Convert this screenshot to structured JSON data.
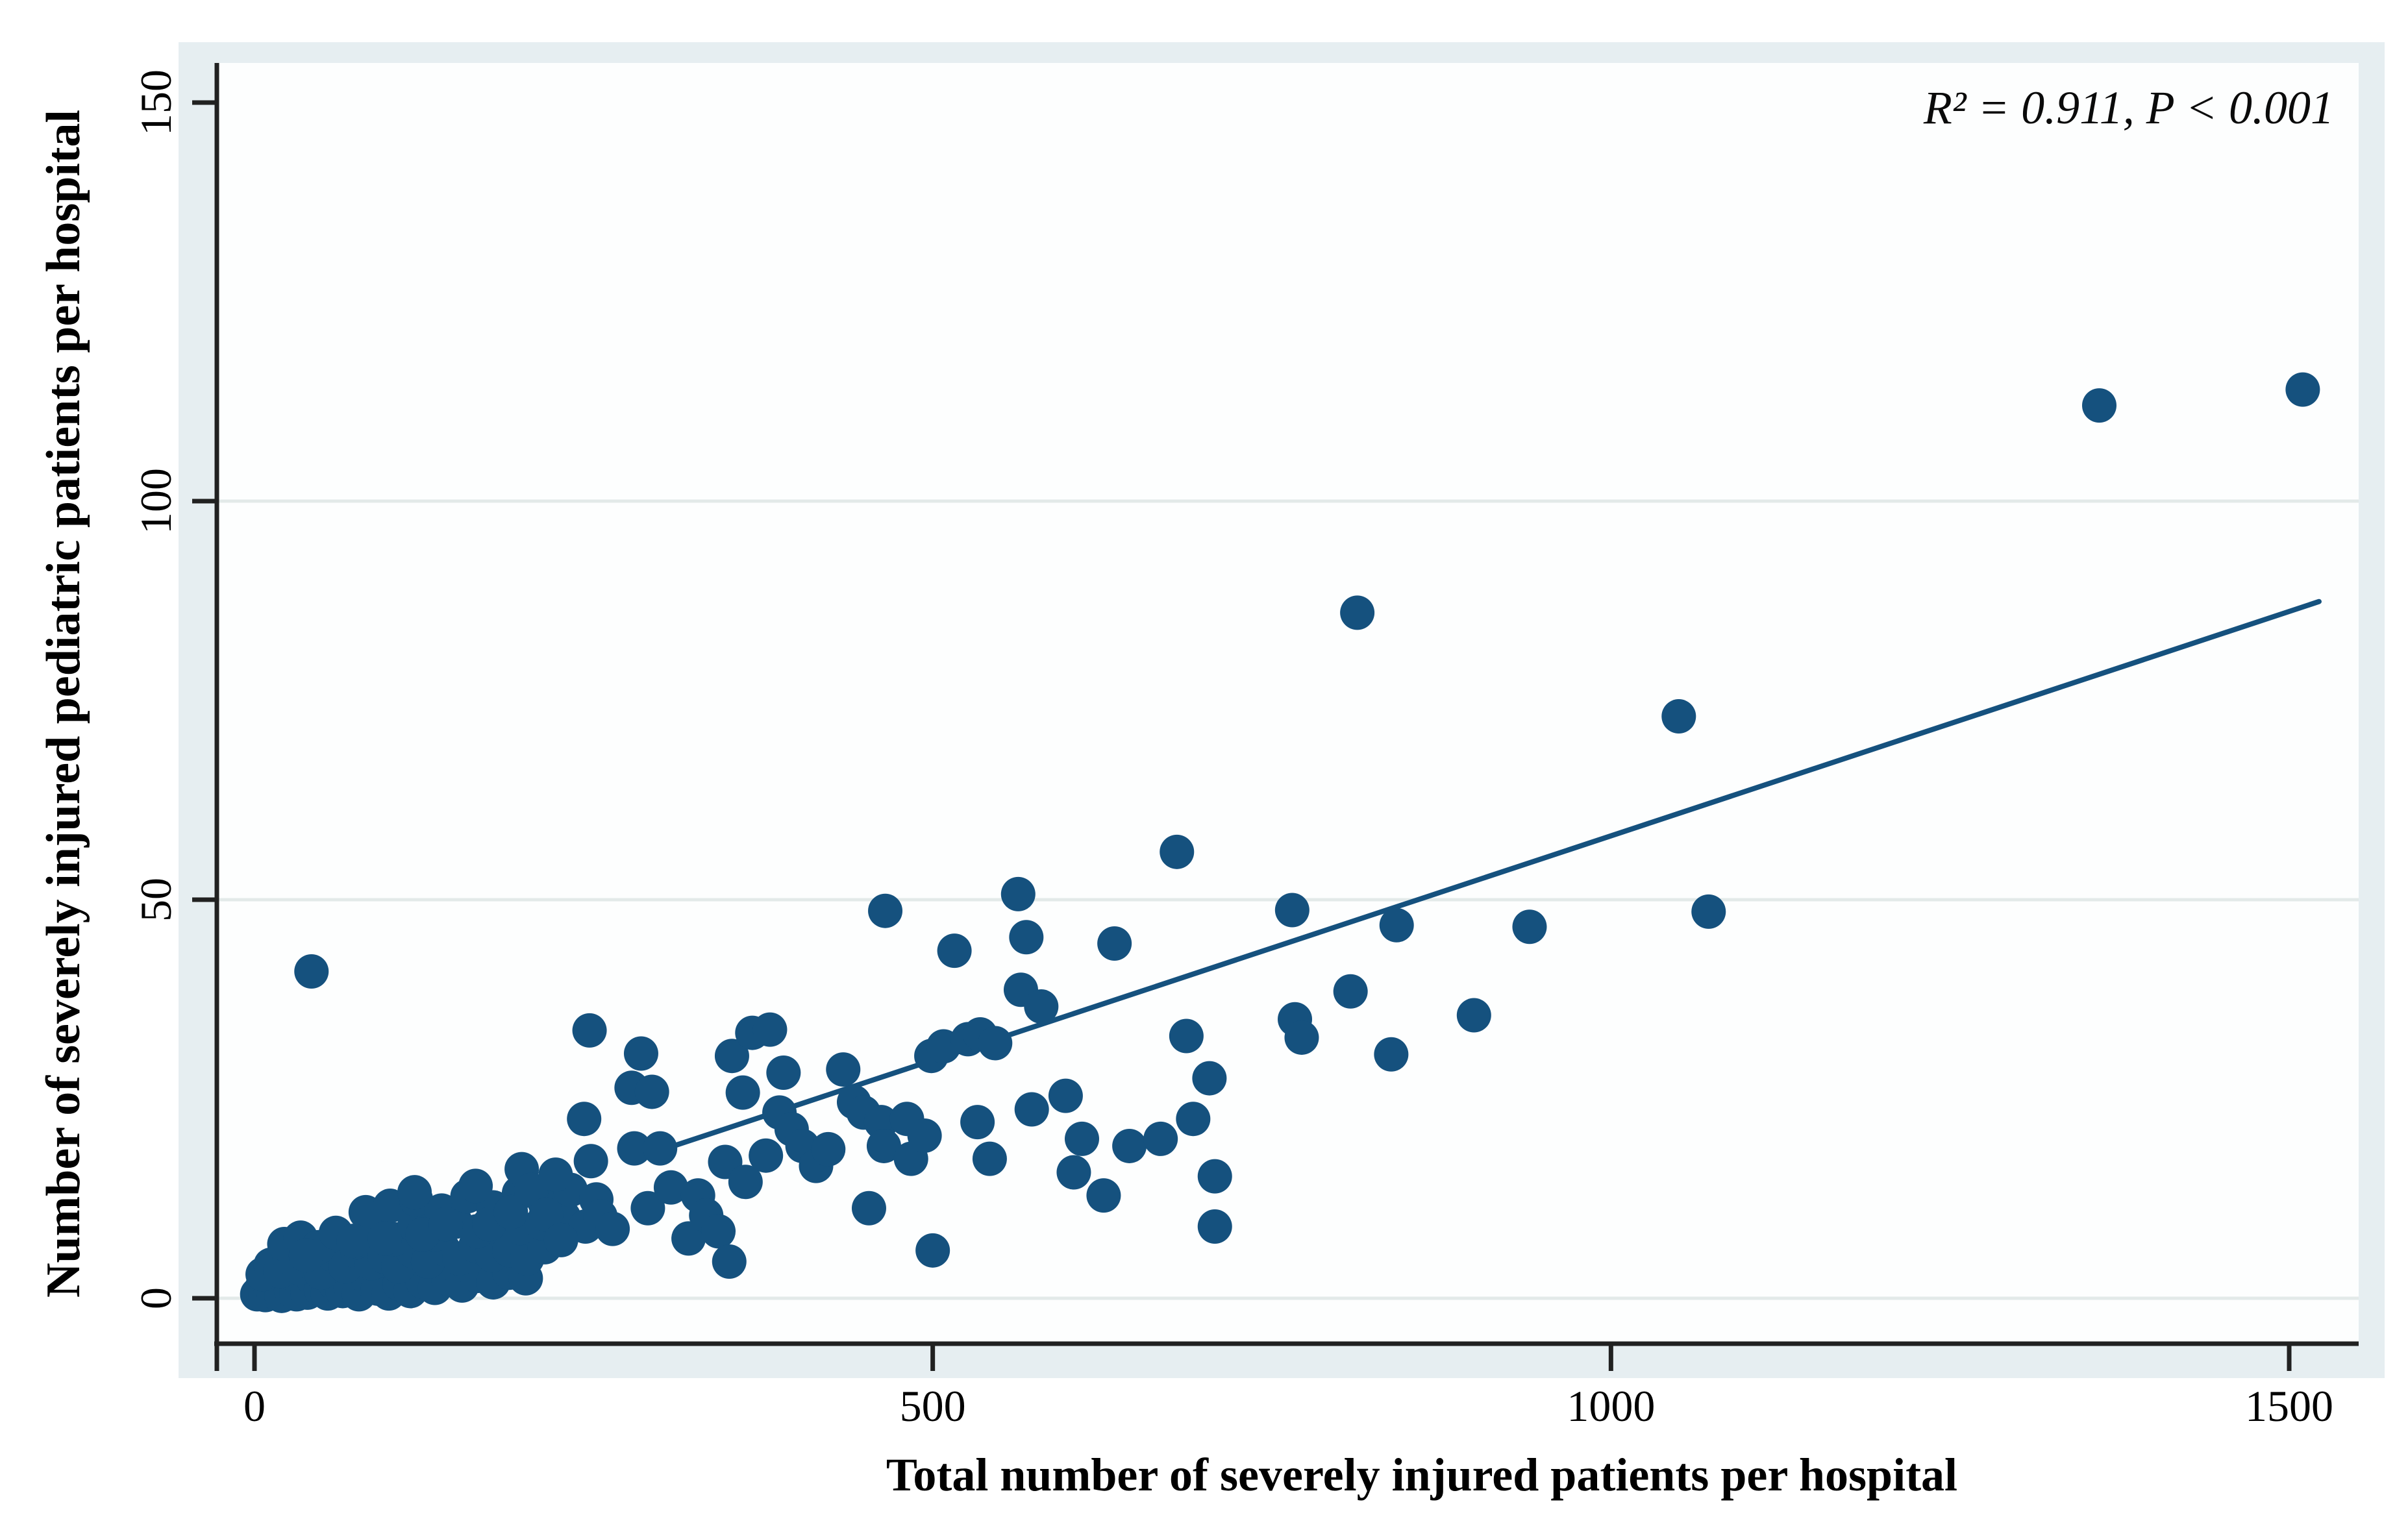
{
  "annotation": {
    "text": "R² = 0.911,  P < 0.001"
  },
  "x_axis": {
    "title": "Total number of severely injured patients per hospital"
  },
  "y_axis": {
    "title": "Number of severely injured pediatric patients per hospital"
  },
  "colors": {
    "navy": "#15517e",
    "band": "#e6eef1",
    "plot_bg": "#fdfefe",
    "grid": "#e3eae9",
    "axis": "#212121",
    "text": "#000000"
  },
  "chart_data": {
    "type": "scatter",
    "title": "",
    "xlabel": "Total number of severely injured patients per hospital",
    "ylabel": "Number of severely injured pediatric patients per hospital",
    "xlim": [
      0,
      1540
    ],
    "ylim": [
      0,
      155
    ],
    "x_ticks": [
      0,
      500,
      1000,
      1500
    ],
    "y_ticks": [
      0,
      50,
      100,
      150
    ],
    "grid_y": [
      0,
      50,
      100
    ],
    "grid_on": true,
    "legend": "none",
    "stats": {
      "r_squared": 0.911,
      "p_value": "< 0.001"
    },
    "fit_line": {
      "x1": 300,
      "y1": 18.6,
      "x2": 1522,
      "y2": 87.4
    },
    "points": [
      [
        2,
        0.5
      ],
      [
        5,
        1.2
      ],
      [
        8,
        0.4
      ],
      [
        11,
        1.8
      ],
      [
        14,
        0.8
      ],
      [
        17,
        1.5
      ],
      [
        20,
        0.3
      ],
      [
        23,
        2
      ],
      [
        27,
        1
      ],
      [
        31,
        0.5
      ],
      [
        35,
        1.6
      ],
      [
        39,
        0.7
      ],
      [
        44,
        2.2
      ],
      [
        49,
        1.1
      ],
      [
        54,
        0.6
      ],
      [
        59,
        1.9
      ],
      [
        65,
        0.9
      ],
      [
        71,
        1.4
      ],
      [
        77,
        0.5
      ],
      [
        84,
        2.3
      ],
      [
        91,
        1.2
      ],
      [
        99,
        0.6
      ],
      [
        107,
        1.8
      ],
      [
        115,
        0.9
      ],
      [
        124,
        2.1
      ],
      [
        133,
        1.3
      ],
      [
        143,
        2.4
      ],
      [
        153,
        1.6
      ],
      [
        164,
        2.8
      ],
      [
        176,
        2
      ],
      [
        188,
        3.2
      ],
      [
        200,
        2.5
      ],
      [
        6,
        3
      ],
      [
        12,
        4.2
      ],
      [
        19,
        3.4
      ],
      [
        26,
        5
      ],
      [
        33,
        3.8
      ],
      [
        41,
        4.6
      ],
      [
        49,
        3.2
      ],
      [
        58,
        5.4
      ],
      [
        67,
        4
      ],
      [
        76,
        5.8
      ],
      [
        86,
        4.4
      ],
      [
        96,
        5.2
      ],
      [
        106,
        4
      ],
      [
        117,
        5.9
      ],
      [
        128,
        4.6
      ],
      [
        139,
        6.2
      ],
      [
        151,
        5
      ],
      [
        163,
        6.6
      ],
      [
        175,
        5.4
      ],
      [
        188,
        6
      ],
      [
        201,
        5
      ],
      [
        214,
        6.4
      ],
      [
        22,
        6.8
      ],
      [
        34,
        7.6
      ],
      [
        47,
        6.4
      ],
      [
        60,
        8.2
      ],
      [
        74,
        7
      ],
      [
        88,
        8.8
      ],
      [
        103,
        7.4
      ],
      [
        118,
        9.2
      ],
      [
        133,
        8
      ],
      [
        148,
        9.6
      ],
      [
        164,
        8.4
      ],
      [
        180,
        10
      ],
      [
        196,
        8.8
      ],
      [
        212,
        9.4
      ],
      [
        228,
        10.2
      ],
      [
        244,
        9
      ],
      [
        82,
        10.8
      ],
      [
        100,
        11.6
      ],
      [
        119,
        12.4
      ],
      [
        138,
        11
      ],
      [
        157,
        12.8
      ],
      [
        176,
        11.4
      ],
      [
        195,
        13.2
      ],
      [
        214,
        12
      ],
      [
        233,
        13.6
      ],
      [
        252,
        12.4
      ],
      [
        38,
        5.4
      ],
      [
        42,
        41
      ],
      [
        73,
        7.2
      ],
      [
        96,
        7.5
      ],
      [
        118,
        13.3
      ],
      [
        124,
        8
      ],
      [
        141,
        9.3
      ],
      [
        163,
        14.1
      ],
      [
        173,
        9.3
      ],
      [
        189,
        10.8
      ],
      [
        197,
        16.2
      ],
      [
        204,
        13.6
      ],
      [
        215,
        10.5
      ],
      [
        222,
        15.5
      ],
      [
        226,
        7.3
      ],
      [
        243,
        22.5
      ],
      [
        247,
        33.6
      ],
      [
        248,
        17.2
      ],
      [
        255,
        10.3
      ],
      [
        264,
        8.7
      ],
      [
        278,
        26.4
      ],
      [
        280,
        18.8
      ],
      [
        285,
        30.7
      ],
      [
        290,
        11.3
      ],
      [
        293,
        25.9
      ],
      [
        299,
        18.8
      ],
      [
        307,
        13.9
      ],
      [
        320,
        7.5
      ],
      [
        327,
        12.9
      ],
      [
        333,
        10.4
      ],
      [
        342,
        8.4
      ],
      [
        347,
        17.1
      ],
      [
        350,
        4.6
      ],
      [
        352,
        30.4
      ],
      [
        360,
        25.8
      ],
      [
        362,
        14.6
      ],
      [
        367,
        33.3
      ],
      [
        377,
        17.9
      ],
      [
        380,
        33.7
      ],
      [
        387,
        23.3
      ],
      [
        390,
        28.3
      ],
      [
        396,
        21.2
      ],
      [
        404,
        19.1
      ],
      [
        414,
        16.6
      ],
      [
        423,
        18.7
      ],
      [
        434,
        28.7
      ],
      [
        442,
        24.6
      ],
      [
        449,
        23.3
      ],
      [
        453,
        11.3
      ],
      [
        462,
        22.1
      ],
      [
        464,
        19.1
      ],
      [
        465,
        48.6
      ],
      [
        481,
        22.5
      ],
      [
        484,
        17.5
      ],
      [
        494,
        20.4
      ],
      [
        499,
        30.4
      ],
      [
        500,
        6
      ],
      [
        508,
        31.6
      ],
      [
        516,
        43.6
      ],
      [
        526,
        32.5
      ],
      [
        533,
        22.1
      ],
      [
        535,
        33.1
      ],
      [
        542,
        17.5
      ],
      [
        546,
        32
      ],
      [
        563,
        50.7
      ],
      [
        565,
        38.7
      ],
      [
        569,
        45.3
      ],
      [
        573,
        23.7
      ],
      [
        580,
        36.6
      ],
      [
        598,
        25.4
      ],
      [
        604,
        15.8
      ],
      [
        610,
        20
      ],
      [
        626,
        12.9
      ],
      [
        634,
        44.5
      ],
      [
        645,
        19.1
      ],
      [
        668,
        20
      ],
      [
        680,
        56
      ],
      [
        687,
        32.9
      ],
      [
        692,
        22.5
      ],
      [
        704,
        27.6
      ],
      [
        708,
        15.3
      ],
      [
        708,
        9
      ],
      [
        765,
        48.7
      ],
      [
        767,
        35
      ],
      [
        772,
        32.7
      ],
      [
        808,
        38.5
      ],
      [
        813,
        86
      ],
      [
        838,
        30.6
      ],
      [
        842,
        46.8
      ],
      [
        899,
        35.5
      ],
      [
        940,
        46.6
      ],
      [
        1050,
        73
      ],
      [
        1072,
        48.5
      ],
      [
        1360,
        112
      ],
      [
        1510,
        114
      ]
    ]
  }
}
